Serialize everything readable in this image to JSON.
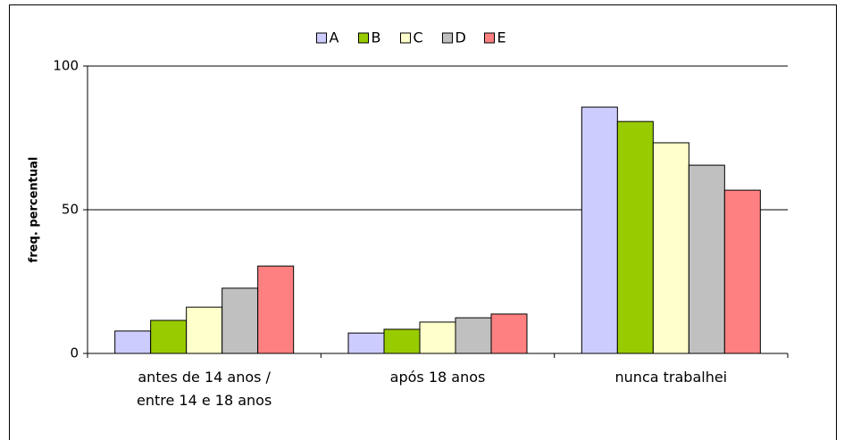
{
  "chart_data": {
    "type": "bar",
    "y_label": "freq. percentual",
    "categories": [
      "antes de 14 anos /\nentre 14 e 18 anos",
      "após 18 anos",
      "nunca trabalhei"
    ],
    "series": [
      {
        "name": "A",
        "color": "#ccccff",
        "values": [
          7.8,
          7.1,
          85.7
        ]
      },
      {
        "name": "B",
        "color": "#99cc00",
        "values": [
          11.5,
          8.4,
          80.7
        ]
      },
      {
        "name": "C",
        "color": "#ffffcc",
        "values": [
          16.1,
          10.9,
          73.3
        ]
      },
      {
        "name": "D",
        "color": "#c0c0c0",
        "values": [
          22.7,
          12.4,
          65.5
        ]
      },
      {
        "name": "E",
        "color": "#ff8080",
        "values": [
          30.4,
          13.7,
          56.8
        ]
      }
    ],
    "ylim": [
      0,
      100
    ],
    "yticks": [
      0,
      50,
      100
    ],
    "grid": true,
    "legend": "top"
  }
}
